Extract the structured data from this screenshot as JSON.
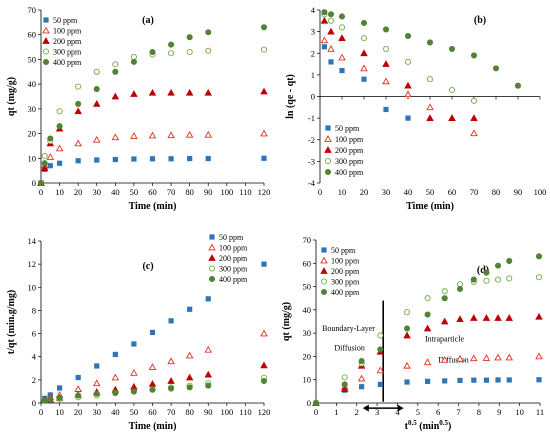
{
  "series_styles": [
    {
      "name": "50 ppm",
      "marker": "square",
      "color": "#2e75b6"
    },
    {
      "name": "100 ppm",
      "marker": "triangle-open",
      "color": "#e0301e"
    },
    {
      "name": "200 ppm",
      "marker": "triangle-filled",
      "color": "#c00000"
    },
    {
      "name": "300 ppm",
      "marker": "circle-open",
      "color": "#70ad47"
    },
    {
      "name": "400 ppm",
      "marker": "circle-filled",
      "color": "#548235"
    }
  ],
  "chart_data": [
    {
      "panel": "(a)",
      "type": "scatter",
      "xlabel": "Time (min)",
      "ylabel": "qt (mg/g)",
      "xlim": [
        0,
        120
      ],
      "ylim": [
        0,
        70
      ],
      "xticks": [
        0,
        10,
        20,
        30,
        40,
        50,
        60,
        70,
        80,
        90,
        100,
        110,
        120
      ],
      "yticks": [
        0,
        10,
        20,
        30,
        40,
        50,
        60,
        70
      ],
      "legend": "top-left",
      "series": [
        {
          "name": "50 ppm",
          "x": [
            0,
            2,
            5,
            10,
            20,
            30,
            40,
            50,
            60,
            70,
            80,
            90,
            120
          ],
          "y": [
            0,
            5.5,
            7,
            8,
            9,
            9.3,
            9.5,
            9.7,
            9.8,
            9.8,
            9.9,
            9.9,
            10
          ]
        },
        {
          "name": "100 ppm",
          "x": [
            0,
            2,
            5,
            10,
            20,
            30,
            40,
            50,
            60,
            70,
            80,
            90,
            120
          ],
          "y": [
            0,
            7,
            10.5,
            14,
            16,
            17.5,
            18.5,
            19,
            19.2,
            19.3,
            19.5,
            19.5,
            20
          ]
        },
        {
          "name": "200 ppm",
          "x": [
            0,
            2,
            5,
            10,
            20,
            30,
            40,
            50,
            60,
            70,
            80,
            90,
            120
          ],
          "y": [
            0,
            6,
            16,
            22,
            29,
            32,
            35,
            36,
            36.5,
            36.5,
            36.5,
            36.5,
            37
          ]
        },
        {
          "name": "300 ppm",
          "x": [
            0,
            2,
            5,
            10,
            20,
            30,
            40,
            50,
            60,
            70,
            80,
            90,
            120
          ],
          "y": [
            0,
            11,
            17,
            29,
            39,
            45,
            48,
            51,
            52,
            52.5,
            53,
            53.5,
            54
          ]
        },
        {
          "name": "400 ppm",
          "x": [
            0,
            2,
            5,
            10,
            20,
            30,
            40,
            50,
            60,
            70,
            80,
            90,
            120
          ],
          "y": [
            0,
            8,
            18,
            23,
            32,
            38,
            45,
            49,
            53,
            56,
            59,
            61,
            63
          ]
        }
      ]
    },
    {
      "panel": "(b)",
      "type": "scatter",
      "xlabel": "Time (min)",
      "ylabel": "ln (qe - qt)",
      "xlim": [
        0,
        100
      ],
      "ylim": [
        -4,
        4
      ],
      "xticks": [
        0,
        10,
        20,
        30,
        40,
        50,
        60,
        70,
        80,
        90,
        100
      ],
      "yticks": [
        -4,
        -3,
        -2,
        -1,
        0,
        1,
        2,
        3,
        4
      ],
      "legend": "bottom-left",
      "series": [
        {
          "name": "50 ppm",
          "x": [
            2,
            5,
            10,
            20,
            30,
            40
          ],
          "y": [
            2.3,
            1.6,
            1.2,
            0.8,
            -0.6,
            -1.0
          ]
        },
        {
          "name": "100 ppm",
          "x": [
            2,
            5,
            10,
            20,
            30,
            40,
            50,
            60,
            70
          ],
          "y": [
            2.6,
            2.2,
            1.8,
            1.3,
            0.7,
            0.1,
            -0.5,
            -1.0,
            -1.7
          ]
        },
        {
          "name": "200 ppm",
          "x": [
            2,
            5,
            10,
            20,
            30,
            40,
            50,
            60,
            70
          ],
          "y": [
            3.5,
            3.0,
            2.7,
            2.0,
            1.5,
            0.5,
            -1.0,
            -1.0,
            -1.0
          ]
        },
        {
          "name": "300 ppm",
          "x": [
            2,
            5,
            10,
            20,
            30,
            40,
            50,
            60,
            70
          ],
          "y": [
            3.8,
            3.5,
            3.2,
            2.7,
            2.2,
            1.6,
            0.8,
            0.3,
            -0.2
          ]
        },
        {
          "name": "400 ppm",
          "x": [
            2,
            5,
            10,
            20,
            30,
            40,
            50,
            60,
            70,
            80,
            90
          ],
          "y": [
            3.9,
            3.8,
            3.7,
            3.4,
            3.1,
            2.8,
            2.5,
            2.2,
            1.9,
            1.3,
            0.5
          ]
        }
      ]
    },
    {
      "panel": "(c)",
      "type": "scatter",
      "xlabel": "Time (min)",
      "ylabel": "t/qt (min.g/mg)",
      "xlim": [
        0,
        120
      ],
      "ylim": [
        0,
        14
      ],
      "xticks": [
        0,
        10,
        20,
        30,
        40,
        50,
        60,
        70,
        80,
        90,
        100,
        110,
        120
      ],
      "yticks": [
        0,
        2,
        4,
        6,
        8,
        10,
        12,
        14
      ],
      "legend": "top-right",
      "series": [
        {
          "name": "50 ppm",
          "x": [
            2,
            5,
            10,
            20,
            30,
            40,
            50,
            60,
            70,
            80,
            90,
            120
          ],
          "y": [
            0.4,
            0.7,
            1.3,
            2.2,
            3.2,
            4.2,
            5.1,
            6.1,
            7.1,
            8.1,
            9.0,
            12.0
          ]
        },
        {
          "name": "100 ppm",
          "x": [
            2,
            5,
            10,
            20,
            30,
            40,
            50,
            60,
            70,
            80,
            90,
            120
          ],
          "y": [
            0.3,
            0.5,
            0.7,
            1.2,
            1.7,
            2.2,
            2.6,
            3.1,
            3.6,
            4.1,
            4.6,
            6.0
          ]
        },
        {
          "name": "200 ppm",
          "x": [
            2,
            5,
            10,
            20,
            30,
            40,
            50,
            60,
            70,
            80,
            90,
            120
          ],
          "y": [
            0.3,
            0.3,
            0.45,
            0.7,
            0.95,
            1.15,
            1.4,
            1.65,
            1.9,
            2.2,
            2.45,
            3.25
          ]
        },
        {
          "name": "300 ppm",
          "x": [
            2,
            5,
            10,
            20,
            30,
            40,
            50,
            60,
            70,
            80,
            90,
            120
          ],
          "y": [
            0.18,
            0.3,
            0.35,
            0.5,
            0.65,
            0.85,
            1.0,
            1.15,
            1.35,
            1.5,
            1.7,
            2.2
          ]
        },
        {
          "name": "400 ppm",
          "x": [
            2,
            5,
            10,
            20,
            30,
            40,
            50,
            60,
            70,
            80,
            90,
            120
          ],
          "y": [
            0.25,
            0.3,
            0.45,
            0.65,
            0.8,
            0.9,
            1.0,
            1.15,
            1.25,
            1.35,
            1.5,
            1.9
          ]
        }
      ]
    },
    {
      "panel": "(d)",
      "type": "scatter",
      "xlabel": "t^0.5 (min^0.5)",
      "ylabel": "qt (mg/g)",
      "xlim": [
        0,
        11
      ],
      "ylim": [
        0,
        70
      ],
      "xticks": [
        0,
        1,
        2,
        3,
        4,
        5,
        6,
        7,
        8,
        9,
        10,
        11
      ],
      "yticks": [
        0,
        10,
        20,
        30,
        40,
        50,
        60,
        70
      ],
      "legend": "top-left",
      "annotations": [
        "Boundary-Layer",
        "Diffusion",
        "Intraparticle",
        "Diffusion"
      ],
      "divider_x": 3.3,
      "arrow_x": [
        2.3,
        4.3
      ],
      "series": [
        {
          "name": "50 ppm",
          "x": [
            0,
            1.41,
            2.24,
            3.16,
            4.47,
            5.48,
            6.32,
            7.07,
            7.75,
            8.37,
            8.94,
            9.49,
            10.95
          ],
          "y": [
            0,
            5.5,
            7,
            8,
            9,
            9.3,
            9.5,
            9.7,
            9.8,
            9.8,
            9.9,
            9.9,
            10
          ]
        },
        {
          "name": "100 ppm",
          "x": [
            0,
            1.41,
            2.24,
            3.16,
            4.47,
            5.48,
            6.32,
            7.07,
            7.75,
            8.37,
            8.94,
            9.49,
            10.95
          ],
          "y": [
            0,
            7,
            10.5,
            14,
            16,
            17.5,
            18.5,
            19,
            19.2,
            19.3,
            19.5,
            19.5,
            20
          ]
        },
        {
          "name": "200 ppm",
          "x": [
            0,
            1.41,
            2.24,
            3.16,
            4.47,
            5.48,
            6.32,
            7.07,
            7.75,
            8.37,
            8.94,
            9.49,
            10.95
          ],
          "y": [
            0,
            6,
            16,
            22,
            29,
            32,
            35,
            36,
            36.5,
            36.5,
            36.5,
            36.5,
            37
          ]
        },
        {
          "name": "300 ppm",
          "x": [
            0,
            1.41,
            2.24,
            3.16,
            4.47,
            5.48,
            6.32,
            7.07,
            7.75,
            8.37,
            8.94,
            9.49,
            10.95
          ],
          "y": [
            0,
            11,
            17,
            29,
            39,
            45,
            48,
            51,
            52,
            52.5,
            53,
            53.5,
            54
          ]
        },
        {
          "name": "400 ppm",
          "x": [
            0,
            1.41,
            2.24,
            3.16,
            4.47,
            5.48,
            6.32,
            7.07,
            7.75,
            8.37,
            8.94,
            9.49,
            10.95
          ],
          "y": [
            0,
            8,
            18,
            23,
            32,
            38,
            45,
            49,
            53,
            56,
            59,
            61,
            63
          ]
        }
      ]
    }
  ]
}
